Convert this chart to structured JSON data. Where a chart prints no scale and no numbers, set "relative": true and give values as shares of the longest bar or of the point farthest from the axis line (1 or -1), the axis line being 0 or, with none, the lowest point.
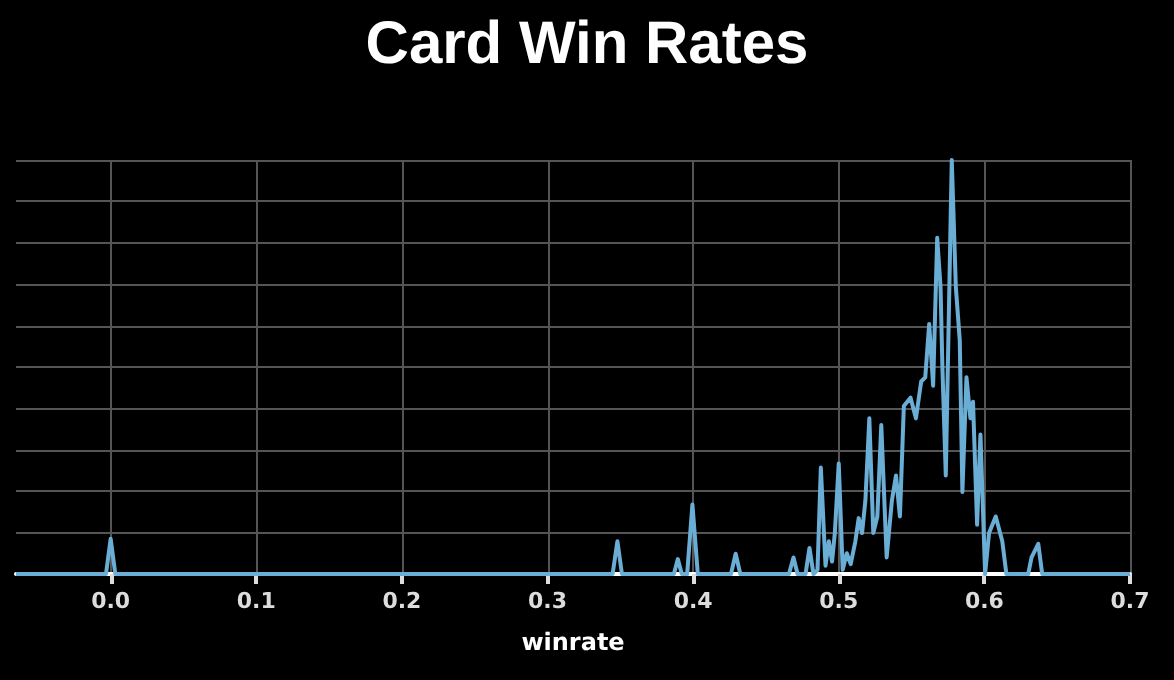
{
  "chart_data": {
    "type": "line",
    "title": "Card Win Rates",
    "xlabel": "winrate",
    "relative": true,
    "grid": true,
    "marker": "none",
    "line_style": "solid",
    "xlim": [
      -0.065,
      0.7
    ],
    "xticks": [
      {
        "value": 0,
        "label": "0.0"
      },
      0.1,
      0.2,
      0.3,
      0.4,
      0.5,
      0.6,
      0.7
    ],
    "x": [
      -0.065,
      -0.0032,
      0,
      0.0032,
      0.3447,
      0.348,
      0.3511,
      0.3868,
      0.3895,
      0.3922,
      0.3959,
      0.3995,
      0.4032,
      0.426,
      0.4292,
      0.4324,
      0.4452,
      0.4658,
      0.4689,
      0.4717,
      0.4772,
      0.4799,
      0.4826,
      0.4854,
      0.4877,
      0.4909,
      0.4932,
      0.4954,
      0.4973,
      0.5,
      0.5027,
      0.5055,
      0.5082,
      0.5114,
      0.5137,
      0.516,
      0.5183,
      0.521,
      0.5237,
      0.5265,
      0.5292,
      0.5329,
      0.5365,
      0.5393,
      0.542,
      0.5447,
      0.5493,
      0.553,
      0.5566,
      0.5594,
      0.5621,
      0.5648,
      0.5676,
      0.5699,
      0.5712,
      0.5735,
      0.5776,
      0.5804,
      0.5831,
      0.5849,
      0.5877,
      0.5904,
      0.5922,
      0.595,
      0.5973,
      0.6005,
      0.6032,
      0.6078,
      0.6123,
      0.6151,
      0.6301,
      0.6324,
      0.637,
      0.6397,
      0.7
    ],
    "series": [
      {
        "color": "#6aaed6",
        "values": [
          0,
          0,
          0.085,
          0,
          0,
          0.079,
          0,
          0,
          0.036,
          0,
          0,
          0.168,
          0,
          0,
          0.049,
          0,
          0,
          0,
          0.04,
          0,
          0,
          0.063,
          0,
          0.01,
          0.257,
          0.02,
          0.079,
          0.03,
          0.099,
          0.267,
          0.01,
          0.05,
          0.024,
          0.079,
          0.135,
          0.099,
          0.178,
          0.376,
          0.099,
          0.139,
          0.36,
          0.04,
          0.178,
          0.238,
          0.139,
          0.406,
          0.426,
          0.376,
          0.465,
          0.475,
          0.604,
          0.455,
          0.812,
          0.693,
          0.495,
          0.238,
          1,
          0.693,
          0.564,
          0.198,
          0.475,
          0.376,
          0.416,
          0.119,
          0.337,
          0,
          0.099,
          0.139,
          0.079,
          0,
          0,
          0.04,
          0.073,
          0,
          0
        ]
      }
    ]
  }
}
